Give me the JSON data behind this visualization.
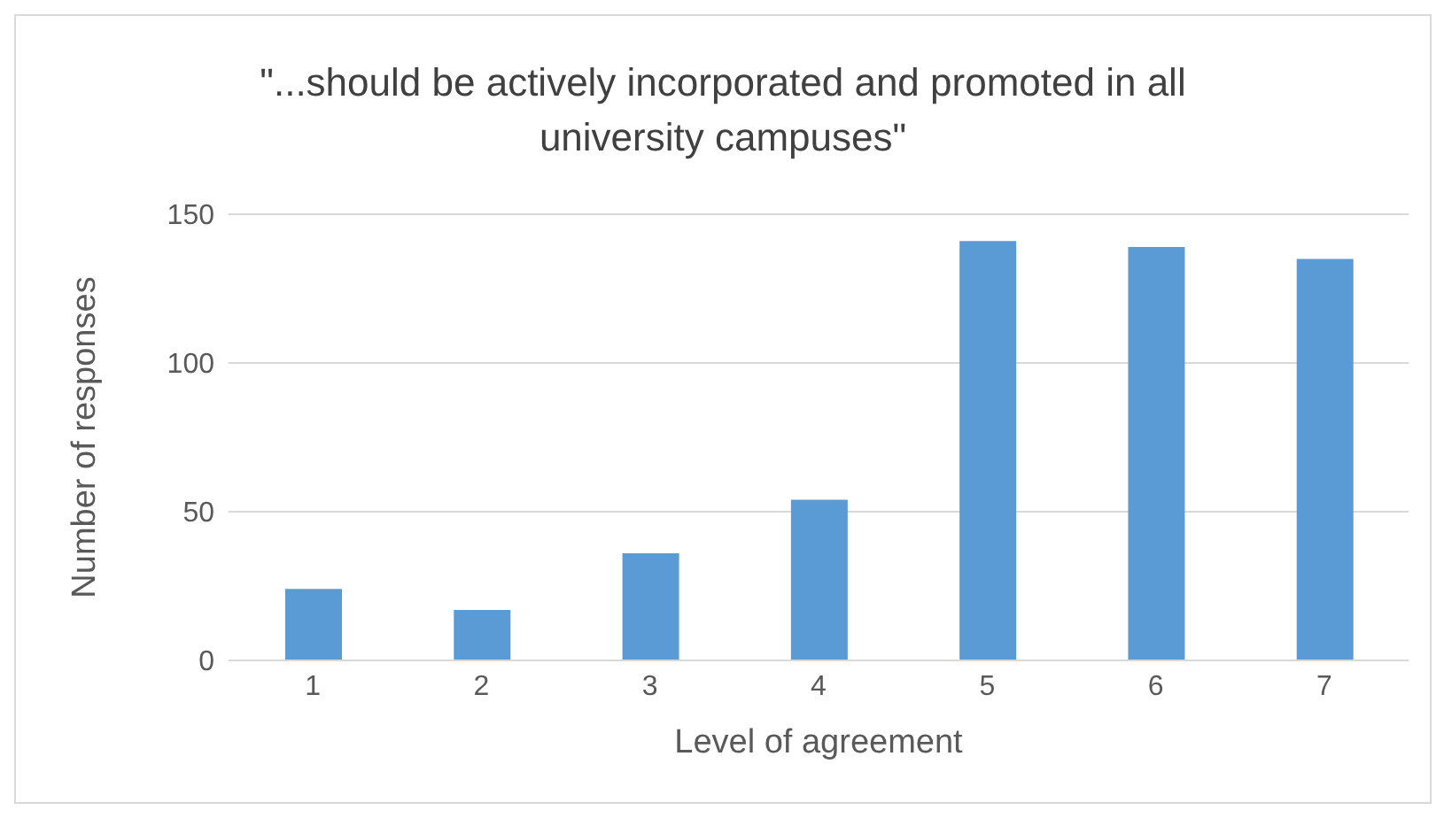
{
  "chart_data": {
    "type": "bar",
    "title": "\"...should be actively incorporated and promoted in all university campuses\"",
    "xlabel": "Level of agreement",
    "ylabel": "Number of responses",
    "categories": [
      "1",
      "2",
      "3",
      "4",
      "5",
      "6",
      "7"
    ],
    "values": [
      24,
      17,
      36,
      54,
      141,
      139,
      135
    ],
    "color": "#5b9bd5",
    "ylim": [
      0,
      150
    ],
    "yticks": [
      0,
      50,
      100,
      150
    ],
    "grid": "y"
  }
}
